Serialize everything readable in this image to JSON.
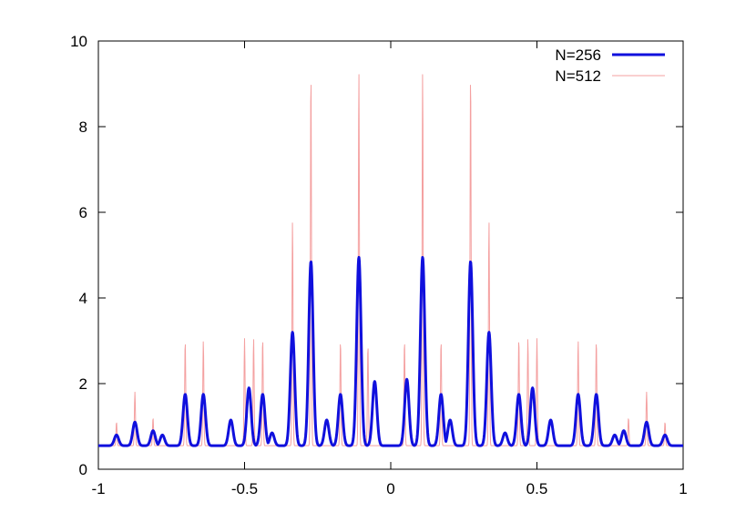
{
  "chart_data": {
    "type": "line",
    "title": "",
    "xlabel": "",
    "ylabel": "",
    "xlim": [
      -1,
      1
    ],
    "ylim": [
      0,
      10
    ],
    "xticks": [
      -1,
      -0.5,
      0,
      0.5,
      1
    ],
    "yticks": [
      0,
      2,
      4,
      6,
      8,
      10
    ],
    "x_tick_labels": [
      "-1",
      "-0.5",
      "0",
      "0.5",
      "1"
    ],
    "y_tick_labels": [
      "0",
      "2",
      "4",
      "6",
      "8",
      "10"
    ],
    "grid": false,
    "legend_position": "top-right",
    "baseline": 0.55,
    "series": [
      {
        "name": "N=256",
        "color": "#1010dd",
        "peaks": [
          {
            "x": -0.938,
            "y": 0.8
          },
          {
            "x": -0.875,
            "y": 1.1
          },
          {
            "x": -0.813,
            "y": 0.9
          },
          {
            "x": -0.781,
            "y": 0.8
          },
          {
            "x": -0.703,
            "y": 1.75
          },
          {
            "x": -0.641,
            "y": 1.75
          },
          {
            "x": -0.547,
            "y": 1.15
          },
          {
            "x": -0.485,
            "y": 1.9
          },
          {
            "x": -0.438,
            "y": 1.75
          },
          {
            "x": -0.406,
            "y": 0.85
          },
          {
            "x": -0.336,
            "y": 3.2
          },
          {
            "x": -0.273,
            "y": 4.85
          },
          {
            "x": -0.219,
            "y": 1.15
          },
          {
            "x": -0.172,
            "y": 1.75
          },
          {
            "x": -0.109,
            "y": 4.95
          },
          {
            "x": -0.055,
            "y": 2.05
          },
          {
            "x": 0.055,
            "y": 2.1
          },
          {
            "x": 0.109,
            "y": 4.95
          },
          {
            "x": 0.172,
            "y": 1.75
          },
          {
            "x": 0.203,
            "y": 1.15
          },
          {
            "x": 0.273,
            "y": 4.85
          },
          {
            "x": 0.336,
            "y": 3.2
          },
          {
            "x": 0.391,
            "y": 0.85
          },
          {
            "x": 0.438,
            "y": 1.75
          },
          {
            "x": 0.485,
            "y": 1.9
          },
          {
            "x": 0.547,
            "y": 1.15
          },
          {
            "x": 0.641,
            "y": 1.75
          },
          {
            "x": 0.703,
            "y": 1.75
          },
          {
            "x": 0.766,
            "y": 0.8
          },
          {
            "x": 0.797,
            "y": 0.9
          },
          {
            "x": 0.875,
            "y": 1.1
          },
          {
            "x": 0.938,
            "y": 0.8
          }
        ]
      },
      {
        "name": "N=512",
        "color": "#f4a0a0",
        "peaks": [
          {
            "x": -0.938,
            "y": 1.1
          },
          {
            "x": -0.875,
            "y": 1.8
          },
          {
            "x": -0.813,
            "y": 1.2
          },
          {
            "x": -0.703,
            "y": 3.0
          },
          {
            "x": -0.641,
            "y": 3.0
          },
          {
            "x": -0.5,
            "y": 3.05
          },
          {
            "x": -0.469,
            "y": 3.05
          },
          {
            "x": -0.438,
            "y": 3.05
          },
          {
            "x": -0.336,
            "y": 5.8
          },
          {
            "x": -0.273,
            "y": 9.3
          },
          {
            "x": -0.172,
            "y": 3.0
          },
          {
            "x": -0.109,
            "y": 9.3
          },
          {
            "x": -0.078,
            "y": 2.9
          },
          {
            "x": 0.047,
            "y": 3.0
          },
          {
            "x": 0.109,
            "y": 9.3
          },
          {
            "x": 0.172,
            "y": 3.0
          },
          {
            "x": 0.273,
            "y": 9.3
          },
          {
            "x": 0.336,
            "y": 5.8
          },
          {
            "x": 0.438,
            "y": 3.05
          },
          {
            "x": 0.469,
            "y": 3.05
          },
          {
            "x": 0.5,
            "y": 3.05
          },
          {
            "x": 0.641,
            "y": 3.0
          },
          {
            "x": 0.703,
            "y": 3.0
          },
          {
            "x": 0.813,
            "y": 1.2
          },
          {
            "x": 0.875,
            "y": 1.8
          },
          {
            "x": 0.938,
            "y": 1.1
          }
        ]
      }
    ]
  }
}
